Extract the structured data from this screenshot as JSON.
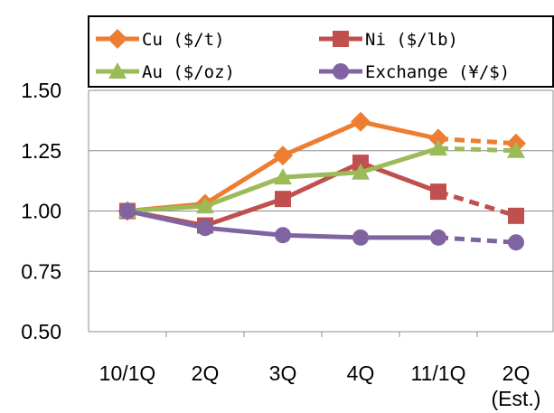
{
  "chart_data": {
    "type": "line",
    "categories": [
      "10/1Q",
      "2Q",
      "3Q",
      "4Q",
      "11/1Q",
      "2Q"
    ],
    "category_notes": [
      "",
      "",
      "",
      "",
      "",
      "(Est.)"
    ],
    "estimate_from_index": 4,
    "ylim": [
      0.5,
      1.5
    ],
    "yticks": [
      "0.50",
      "0.75",
      "1.00",
      "1.25",
      "1.50"
    ],
    "grid": "horizontal",
    "legend_position": "top",
    "series": [
      {
        "name": "Cu ($/t)",
        "color": "#ED7D31",
        "marker": "diamond",
        "values": [
          1.0,
          1.03,
          1.23,
          1.37,
          1.3,
          1.28
        ]
      },
      {
        "name": "Ni ($/lb)",
        "color": "#C0504D",
        "marker": "square",
        "values": [
          1.0,
          0.94,
          1.05,
          1.2,
          1.08,
          0.98
        ]
      },
      {
        "name": "Au ($/oz)",
        "color": "#9BBB59",
        "marker": "triangle",
        "values": [
          1.0,
          1.02,
          1.14,
          1.16,
          1.26,
          1.25
        ]
      },
      {
        "name": "Exchange (¥/$)",
        "color": "#8064A2",
        "marker": "circle",
        "values": [
          1.0,
          0.93,
          0.9,
          0.89,
          0.89,
          0.87
        ]
      }
    ]
  }
}
